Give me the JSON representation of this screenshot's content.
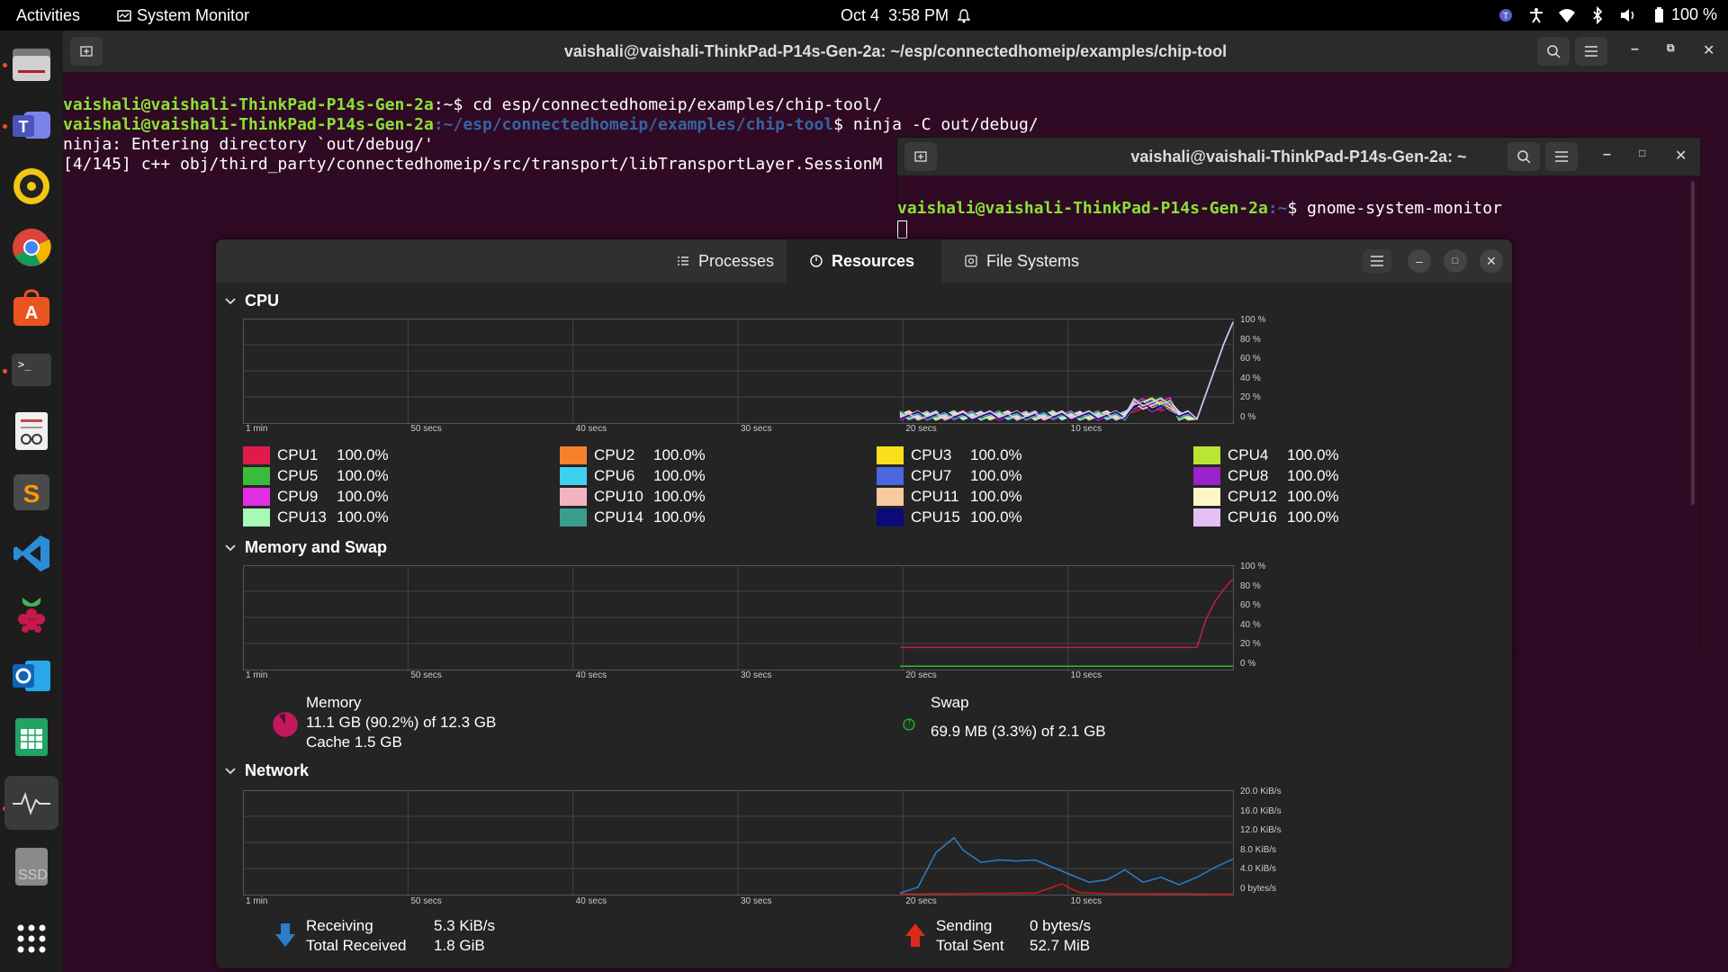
{
  "topbar": {
    "activities": "Activities",
    "app_name": "System Monitor",
    "date": "Oct 4",
    "time": "3:58 PM",
    "battery": "100 %"
  },
  "dock": {
    "items": [
      "files",
      "teams",
      "rhythmbox",
      "chrome",
      "app-center",
      "terminal",
      "text-editor",
      "sublime-text",
      "vscode",
      "raspberry-pi",
      "outlook",
      "spreadsheet",
      "system-monitor",
      "ssd",
      "show-apps"
    ],
    "ssd_label": "SSD"
  },
  "terminal_main": {
    "title": "vaishali@vaishali-ThinkPad-P14s-Gen-2a: ~/esp/connectedhomeip/examples/chip-tool",
    "line1_user": "vaishali@vaishali-ThinkPad-P14s-Gen-2a",
    "line1_path": ":~",
    "line1_cmd": "$ cd esp/connectedhomeip/examples/chip-tool/",
    "line2_user": "vaishali@vaishali-ThinkPad-P14s-Gen-2a",
    "line2_path": ":~/esp/connectedhomeip/examples/chip-tool",
    "line2_cmd": "$ ninja -C out/debug/",
    "line3": "ninja: Entering directory `out/debug/'",
    "line4": "[4/145] c++ obj/third_party/connectedhomeip/src/transport/libTransportLayer.SessionM"
  },
  "terminal_second": {
    "title": "vaishali@vaishali-ThinkPad-P14s-Gen-2a: ~",
    "prompt_user": "vaishali@vaishali-ThinkPad-P14s-Gen-2a",
    "prompt_path": ":~",
    "prompt_cmd": "$ gnome-system-monitor"
  },
  "sysmon": {
    "tabs": [
      "Processes",
      "Resources",
      "File Systems"
    ],
    "x_ticks": [
      "1 min",
      "50 secs",
      "40 secs",
      "30 secs",
      "20 secs",
      "10 secs"
    ],
    "percent_ticks": [
      "100 %",
      "80 %",
      "60 %",
      "40 %",
      "20 %",
      "0 %"
    ],
    "cpu": {
      "title": "CPU",
      "cores": [
        {
          "name": "CPU1",
          "value": "100.0%",
          "color": "#e01b4c"
        },
        {
          "name": "CPU2",
          "value": "100.0%",
          "color": "#f6812a"
        },
        {
          "name": "CPU3",
          "value": "100.0%",
          "color": "#f8e01a"
        },
        {
          "name": "CPU4",
          "value": "100.0%",
          "color": "#b8e633"
        },
        {
          "name": "CPU5",
          "value": "100.0%",
          "color": "#3bbb3b"
        },
        {
          "name": "CPU6",
          "value": "100.0%",
          "color": "#3dd0f0"
        },
        {
          "name": "CPU7",
          "value": "100.0%",
          "color": "#4a66e0"
        },
        {
          "name": "CPU8",
          "value": "100.0%",
          "color": "#9b22c8"
        },
        {
          "name": "CPU9",
          "value": "100.0%",
          "color": "#e02ee0"
        },
        {
          "name": "CPU10",
          "value": "100.0%",
          "color": "#f2b4be"
        },
        {
          "name": "CPU11",
          "value": "100.0%",
          "color": "#f8caa0"
        },
        {
          "name": "CPU12",
          "value": "100.0%",
          "color": "#fdf7c8"
        },
        {
          "name": "CPU13",
          "value": "100.0%",
          "color": "#a8f8b8"
        },
        {
          "name": "CPU14",
          "value": "100.0%",
          "color": "#3a9e8e"
        },
        {
          "name": "CPU15",
          "value": "100.0%",
          "color": "#0a0a78"
        },
        {
          "name": "CPU16",
          "value": "100.0%",
          "color": "#e4c0f4"
        }
      ]
    },
    "memory": {
      "title": "Memory and Swap",
      "mem_label": "Memory",
      "mem_value": "11.1 GB (90.2%) of 12.3 GB",
      "mem_cache": "Cache 1.5 GB",
      "mem_percent": 90.2,
      "swap_label": "Swap",
      "swap_value": "69.9 MB (3.3%) of 2.1 GB",
      "swap_percent": 3.3,
      "mem_color": "#c3185d",
      "swap_color": "#3bb33b"
    },
    "network": {
      "title": "Network",
      "y_ticks": [
        "20.0 KiB/s",
        "16.0 KiB/s",
        "12.0 KiB/s",
        "8.0 KiB/s",
        "4.0 KiB/s",
        "0 bytes/s"
      ],
      "recv_label": "Receiving",
      "recv_value": "5.3 KiB/s",
      "total_recv_label": "Total Received",
      "total_recv_value": "1.8 GiB",
      "send_label": "Sending",
      "send_value": "0 bytes/s",
      "total_sent_label": "Total Sent",
      "total_sent_value": "52.7 MiB",
      "recv_color": "#2a7fc8",
      "send_color": "#cc1a1a"
    }
  }
}
